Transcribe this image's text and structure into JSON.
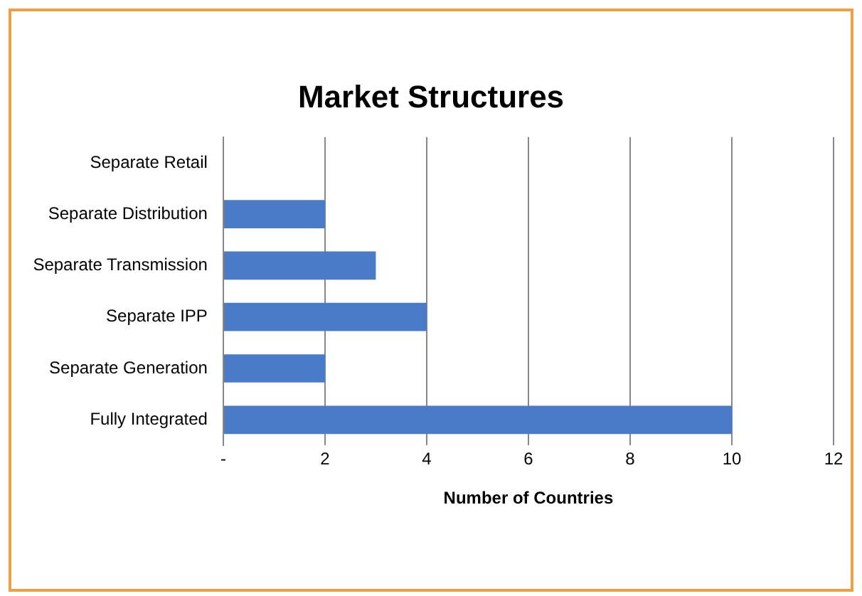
{
  "chart_data": {
    "type": "bar",
    "orientation": "horizontal",
    "title": "Market Structures",
    "xlabel": "Number of Countries",
    "categories": [
      "Separate Retail",
      "Separate Distribution",
      "Separate Transmission",
      "Separate IPP",
      "Separate Generation",
      "Fully Integrated"
    ],
    "values": [
      0,
      2,
      3,
      4,
      2,
      10
    ],
    "color": "#4a7bc8",
    "xlim": [
      0,
      12
    ],
    "xticks": [
      {
        "value": 0,
        "label": "-"
      },
      2,
      4,
      6,
      8,
      10,
      12
    ],
    "grid": "x",
    "legend": false
  }
}
